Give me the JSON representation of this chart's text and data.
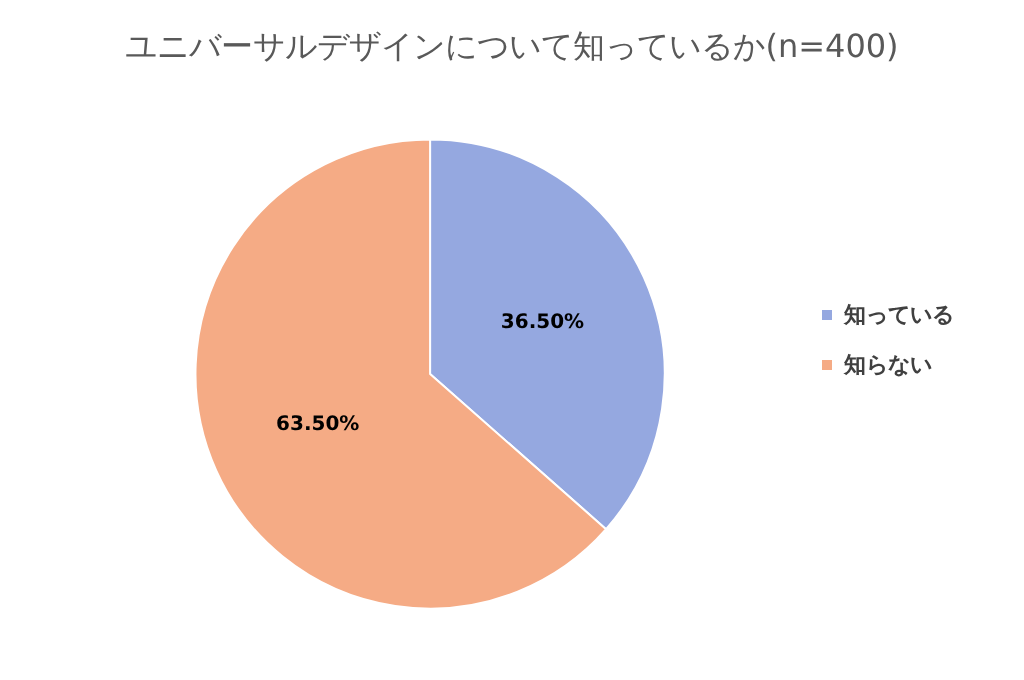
{
  "chart_data": {
    "type": "pie",
    "title": "ユニバーサルデザインについて知っているか(n=400)",
    "categories": [
      "知っている",
      "知らない"
    ],
    "values": [
      36.5,
      63.5
    ],
    "colors": [
      "#95a8e0",
      "#f5ab85"
    ],
    "value_labels": [
      "36.50%",
      "63.50%"
    ],
    "legend": "right"
  }
}
